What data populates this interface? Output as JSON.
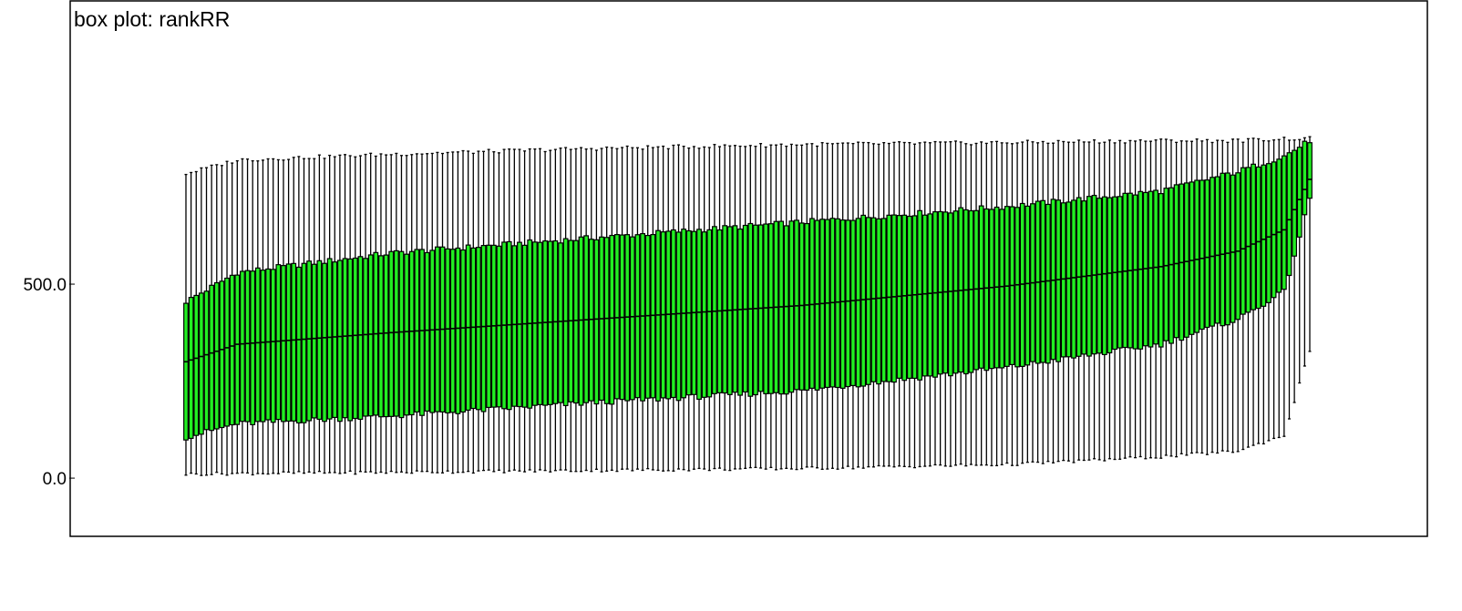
{
  "chart_data": {
    "type": "box",
    "title": "box plot: rankRR",
    "xlabel": "",
    "ylabel": "",
    "ylim": [
      -150,
      1230
    ],
    "y_ticks": [
      0,
      500
    ],
    "y_tick_labels": [
      "0.0",
      "500.0"
    ],
    "grid": false,
    "legend": "none",
    "box_fill": "#22ee22",
    "stroke": "#000000",
    "series": [
      {
        "count": 220,
        "anchors": [
          {
            "i": 0,
            "min": 10,
            "q1": 105,
            "median": 300,
            "q3": 455,
            "max": 785
          },
          {
            "i": 10,
            "min": 12,
            "q1": 140,
            "median": 345,
            "q3": 530,
            "max": 820
          },
          {
            "i": 40,
            "min": 15,
            "q1": 160,
            "median": 375,
            "q3": 580,
            "max": 835
          },
          {
            "i": 80,
            "min": 20,
            "q1": 195,
            "median": 410,
            "q3": 620,
            "max": 850
          },
          {
            "i": 120,
            "min": 25,
            "q1": 225,
            "median": 445,
            "q3": 660,
            "max": 860
          },
          {
            "i": 160,
            "min": 35,
            "q1": 285,
            "median": 495,
            "q3": 700,
            "max": 865
          },
          {
            "i": 190,
            "min": 55,
            "q1": 345,
            "median": 545,
            "q3": 740,
            "max": 870
          },
          {
            "i": 205,
            "min": 70,
            "q1": 410,
            "median": 585,
            "q3": 790,
            "max": 870
          },
          {
            "i": 214,
            "min": 110,
            "q1": 480,
            "median": 640,
            "q3": 830,
            "max": 875
          },
          {
            "i": 219,
            "min": 330,
            "q1": 720,
            "median": 770,
            "q3": 870,
            "max": 875
          }
        ]
      }
    ]
  }
}
